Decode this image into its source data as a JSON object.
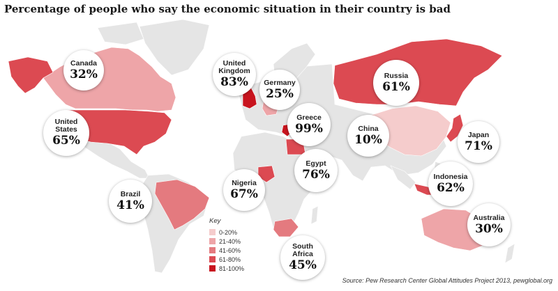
{
  "title": "Percentage of people who say the economic situation in their country is bad",
  "source": "Source: Pew Research Center Global Attitudes Project 2013, pewglobal.org",
  "colors": {
    "land": "#e5e5e5",
    "bin_0_20": "#f5cccc",
    "bin_21_40": "#eea5a8",
    "bin_41_60": "#e47a7f",
    "bin_61_80": "#dc4a52",
    "bin_81_100": "#c8141e"
  },
  "key": {
    "title": "Key",
    "items": [
      {
        "label": "0-20%",
        "color": "#f5cccc"
      },
      {
        "label": "21-40%",
        "color": "#eea5a8"
      },
      {
        "label": "41-60%",
        "color": "#e47a7f"
      },
      {
        "label": "61-80%",
        "color": "#dc4a52"
      },
      {
        "label": "81-100%",
        "color": "#c8141e"
      }
    ]
  },
  "countries": [
    {
      "name": "Canada",
      "value": "32%"
    },
    {
      "name": "United States",
      "value": "65%"
    },
    {
      "name": "Brazil",
      "value": "41%"
    },
    {
      "name": "United Kingdom",
      "value": "83%"
    },
    {
      "name": "Germany",
      "value": "25%"
    },
    {
      "name": "Greece",
      "value": "99%"
    },
    {
      "name": "Egypt",
      "value": "76%"
    },
    {
      "name": "Nigeria",
      "value": "67%"
    },
    {
      "name": "South Africa",
      "value": "45%"
    },
    {
      "name": "Russia",
      "value": "61%"
    },
    {
      "name": "China",
      "value": "10%"
    },
    {
      "name": "Japan",
      "value": "71%"
    },
    {
      "name": "Indonesia",
      "value": "62%"
    },
    {
      "name": "Australia",
      "value": "30%"
    }
  ]
}
